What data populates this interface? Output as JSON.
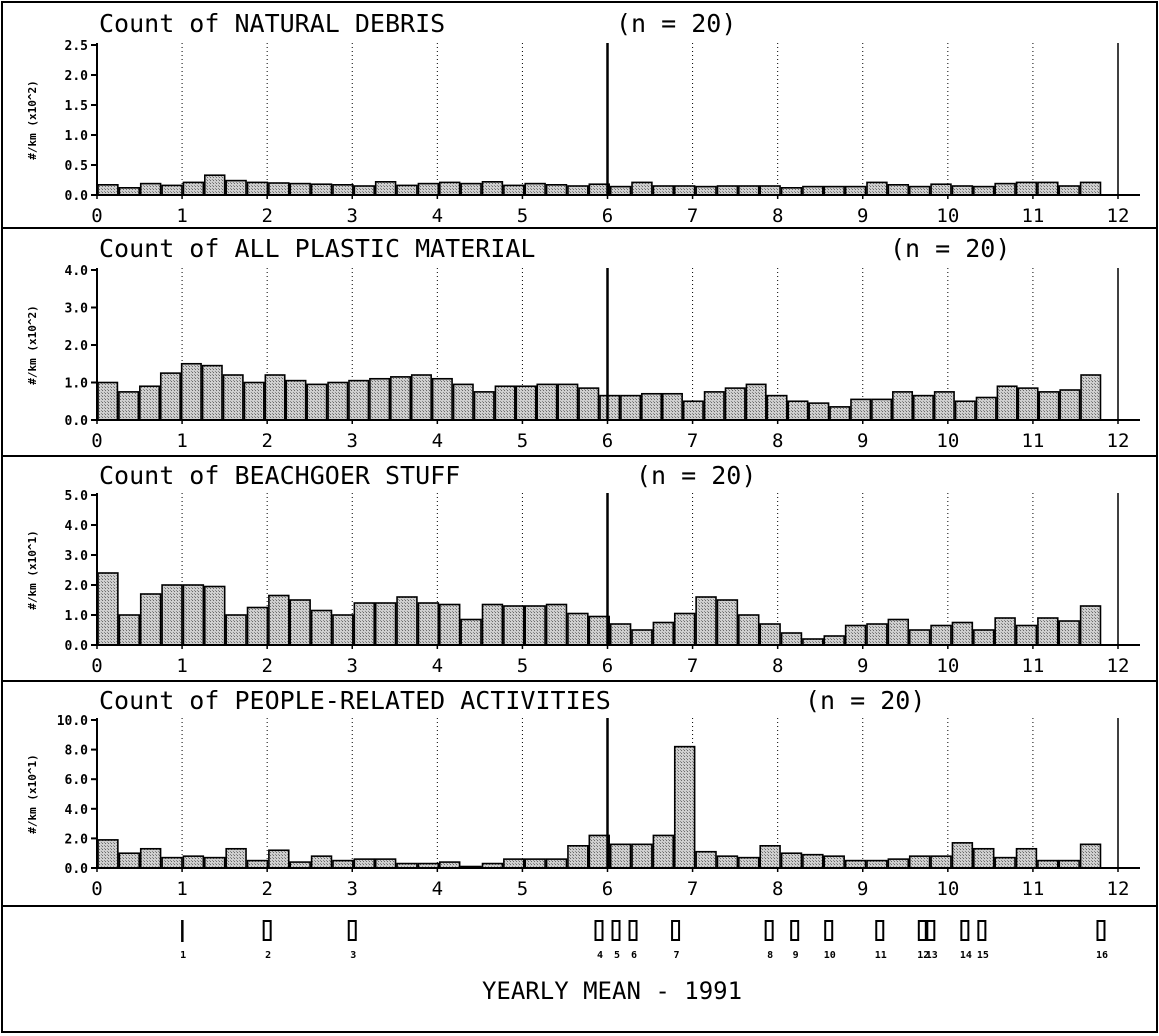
{
  "footer": {
    "label": "YEARLY MEAN - 1991"
  },
  "month_markers": [
    {
      "label": "1",
      "value": 1.0,
      "shape": "bar"
    },
    {
      "label": "2",
      "value": 2.0,
      "shape": "box"
    },
    {
      "label": "3",
      "value": 3.0,
      "shape": "box"
    },
    {
      "label": "4",
      "value": 5.9,
      "shape": "box"
    },
    {
      "label": "5",
      "value": 6.1,
      "shape": "box"
    },
    {
      "label": "6",
      "value": 6.3,
      "shape": "box"
    },
    {
      "label": "7",
      "value": 6.8,
      "shape": "box"
    },
    {
      "label": "8",
      "value": 7.9,
      "shape": "box"
    },
    {
      "label": "9",
      "value": 8.2,
      "shape": "box"
    },
    {
      "label": "10",
      "value": 8.6,
      "shape": "box"
    },
    {
      "label": "11",
      "value": 9.2,
      "shape": "box"
    },
    {
      "label": "12",
      "value": 9.7,
      "shape": "box"
    },
    {
      "label": "13",
      "value": 9.8,
      "shape": "box"
    },
    {
      "label": "14",
      "value": 10.2,
      "shape": "box"
    },
    {
      "label": "15",
      "value": 10.4,
      "shape": "box"
    },
    {
      "label": "16",
      "value": 11.8,
      "shape": "box"
    }
  ],
  "chart_data": [
    {
      "type": "bar",
      "title": "Count of  NATURAL DEBRIS",
      "n_label": "(n =  20)",
      "ylabel": "#/km (x10^2)",
      "ylim": [
        0,
        2.5
      ],
      "yticks": [
        "0.0",
        "0.5",
        "1.0",
        "1.5",
        "2.0",
        "2.5"
      ],
      "xlim": [
        0,
        12
      ],
      "xticks": [
        "0",
        "1",
        "2",
        "3",
        "4",
        "5",
        "6",
        "7",
        "8",
        "9",
        "10",
        "11",
        "12"
      ],
      "values": [
        0.17,
        0.12,
        0.19,
        0.16,
        0.21,
        0.33,
        0.24,
        0.21,
        0.2,
        0.19,
        0.18,
        0.17,
        0.15,
        0.22,
        0.16,
        0.19,
        0.21,
        0.19,
        0.22,
        0.16,
        0.19,
        0.17,
        0.15,
        0.18,
        0.14,
        0.21,
        0.15,
        0.15,
        0.14,
        0.15,
        0.15,
        0.15,
        0.12,
        0.14,
        0.14,
        0.14,
        0.21,
        0.17,
        0.14,
        0.18,
        0.15,
        0.14,
        0.19,
        0.21,
        0.21,
        0.15,
        0.21
      ]
    },
    {
      "type": "bar",
      "title": "Count of  ALL PLASTIC MATERIAL",
      "n_label": "(n =  20)",
      "ylabel": "#/km (x10^2)",
      "ylim": [
        0,
        4.0
      ],
      "yticks": [
        "0.0",
        "1.0",
        "2.0",
        "3.0",
        "4.0"
      ],
      "xlim": [
        0,
        12
      ],
      "xticks": [
        "0",
        "1",
        "2",
        "3",
        "4",
        "5",
        "6",
        "7",
        "8",
        "9",
        "10",
        "11",
        "12"
      ],
      "values": [
        1.0,
        0.75,
        0.9,
        1.25,
        1.5,
        1.45,
        1.2,
        1.0,
        1.2,
        1.05,
        0.95,
        1.0,
        1.05,
        1.1,
        1.15,
        1.2,
        1.1,
        0.95,
        0.75,
        0.9,
        0.9,
        0.95,
        0.95,
        0.85,
        0.65,
        0.65,
        0.7,
        0.7,
        0.5,
        0.75,
        0.85,
        0.95,
        0.65,
        0.5,
        0.45,
        0.35,
        0.55,
        0.55,
        0.75,
        0.65,
        0.75,
        0.5,
        0.6,
        0.9,
        0.85,
        0.75,
        0.8,
        1.2
      ]
    },
    {
      "type": "bar",
      "title": "Count of  BEACHGOER STUFF",
      "n_label": "(n =  20)",
      "ylabel": "#/km (x10^1)",
      "ylim": [
        0,
        5.0
      ],
      "yticks": [
        "0.0",
        "1.0",
        "2.0",
        "3.0",
        "4.0",
        "5.0"
      ],
      "xlim": [
        0,
        12
      ],
      "xticks": [
        "0",
        "1",
        "2",
        "3",
        "4",
        "5",
        "6",
        "7",
        "8",
        "9",
        "10",
        "11",
        "12"
      ],
      "values": [
        2.4,
        1.0,
        1.7,
        2.0,
        2.0,
        1.95,
        1.0,
        1.25,
        1.65,
        1.5,
        1.15,
        1.0,
        1.4,
        1.4,
        1.6,
        1.4,
        1.35,
        0.85,
        1.35,
        1.3,
        1.3,
        1.35,
        1.05,
        0.95,
        0.7,
        0.5,
        0.75,
        1.05,
        1.6,
        1.5,
        1.0,
        0.7,
        0.4,
        0.2,
        0.3,
        0.65,
        0.7,
        0.85,
        0.5,
        0.65,
        0.75,
        0.5,
        0.9,
        0.65,
        0.9,
        0.8,
        1.3
      ]
    },
    {
      "type": "bar",
      "title": "Count of  PEOPLE-RELATED ACTIVITIES",
      "n_label": "(n =  20)",
      "ylabel": "#/km (x10^1)",
      "ylim": [
        0,
        10.0
      ],
      "yticks": [
        "0.0",
        "2.0",
        "4.0",
        "6.0",
        "8.0",
        "10.0"
      ],
      "xlim": [
        0,
        12
      ],
      "xticks": [
        "0",
        "1",
        "2",
        "3",
        "4",
        "5",
        "6",
        "7",
        "8",
        "9",
        "10",
        "11",
        "12"
      ],
      "values": [
        1.9,
        1.0,
        1.3,
        0.7,
        0.8,
        0.7,
        1.3,
        0.5,
        1.2,
        0.4,
        0.8,
        0.5,
        0.6,
        0.6,
        0.3,
        0.3,
        0.4,
        0.1,
        0.3,
        0.6,
        0.6,
        0.6,
        1.5,
        2.2,
        1.6,
        1.6,
        2.2,
        8.2,
        1.1,
        0.8,
        0.7,
        1.5,
        1.0,
        0.9,
        0.8,
        0.5,
        0.5,
        0.6,
        0.8,
        0.8,
        1.7,
        1.3,
        0.7,
        1.3,
        0.5,
        0.5,
        1.6
      ]
    }
  ]
}
